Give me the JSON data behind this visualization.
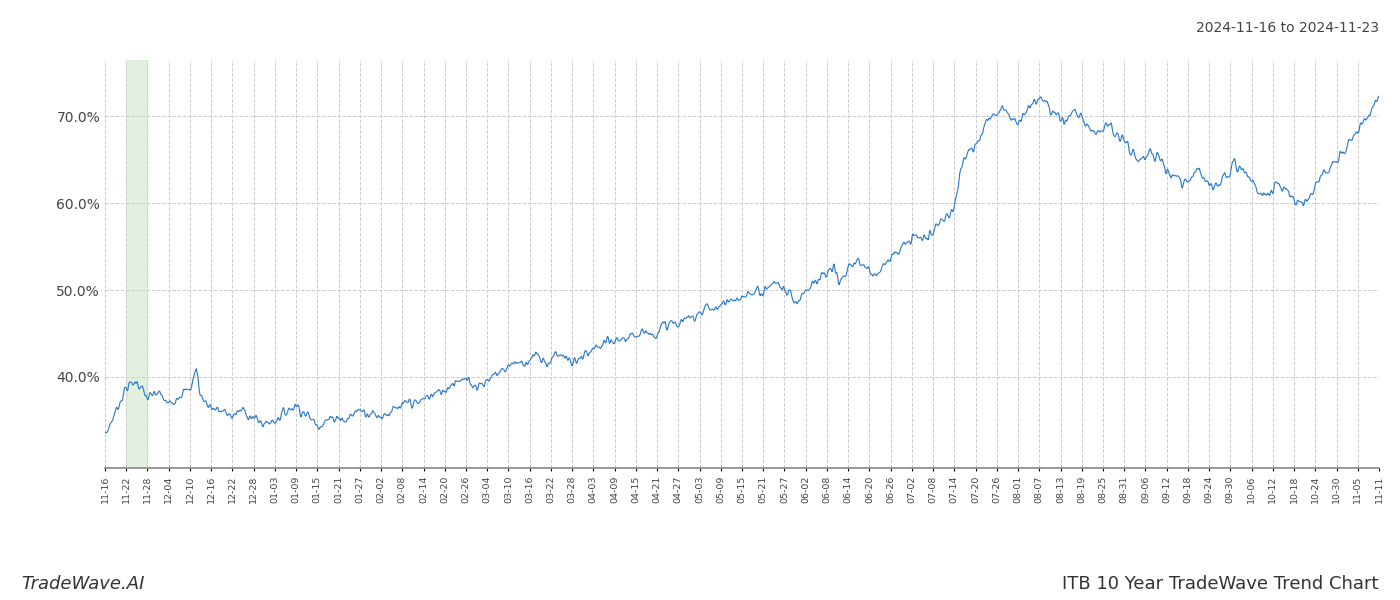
{
  "title_top_right": "2024-11-16 to 2024-11-23",
  "title_bottom_right": "ITB 10 Year TradeWave Trend Chart",
  "title_bottom_left": "TradeWave.AI",
  "line_color": "#2878c8",
  "line_width": 0.8,
  "highlight_color": "#d6ecd2",
  "highlight_alpha": 0.7,
  "highlight_xstart": 1,
  "highlight_xend": 2,
  "background_color": "#ffffff",
  "grid_color": "#cccccc",
  "grid_style": "--",
  "ylim": [
    0.295,
    0.765
  ],
  "yticks": [
    0.4,
    0.5,
    0.6,
    0.7
  ],
  "ytick_labels": [
    "40.0%",
    "50.0%",
    "60.0%",
    "70.0%"
  ],
  "xtick_labels": [
    "11-16",
    "11-22",
    "11-28",
    "12-04",
    "12-10",
    "12-16",
    "12-22",
    "12-28",
    "01-03",
    "01-09",
    "01-15",
    "01-21",
    "01-27",
    "02-02",
    "02-08",
    "02-14",
    "02-20",
    "02-26",
    "03-04",
    "03-10",
    "03-16",
    "03-22",
    "03-28",
    "04-03",
    "04-09",
    "04-15",
    "04-21",
    "04-27",
    "05-03",
    "05-09",
    "05-15",
    "05-21",
    "05-27",
    "06-02",
    "06-08",
    "06-14",
    "06-20",
    "06-26",
    "07-02",
    "07-08",
    "07-14",
    "07-20",
    "07-26",
    "08-01",
    "08-07",
    "08-13",
    "08-19",
    "08-25",
    "08-31",
    "09-06",
    "09-12",
    "09-18",
    "09-24",
    "09-30",
    "10-06",
    "10-12",
    "10-18",
    "10-24",
    "10-30",
    "11-05",
    "11-11"
  ]
}
